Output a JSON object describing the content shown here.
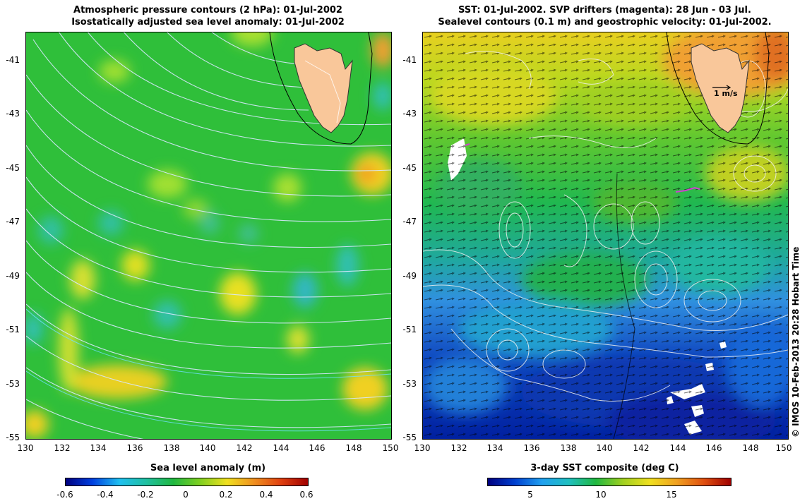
{
  "left_panel": {
    "title_line1": "Atmospheric pressure contours (2 hPa): 01-Jul-2002",
    "title_line2": "Isostatically adjusted sea level anomaly: 01-Jul-2002",
    "colorbar_label": "Sea level anomaly (m)",
    "colorbar_ticks": [
      "-0.6",
      "-0.4",
      "-0.2",
      "0",
      "0.2",
      "0.4",
      "0.6"
    ],
    "colors": {
      "land": "#f9c79a",
      "base": "#2fbf3a",
      "contour": "#e8f0ff"
    }
  },
  "right_panel": {
    "title_line1": "SST: 01-Jul-2002. SVP drifters (magenta): 28 Jun - 03 Jul.",
    "title_line2": "Sealevel contours (0.1 m) and geostrophic velocity: 01-Jul-2002.",
    "colorbar_label": "3-day SST composite (deg C)",
    "colorbar_ticks": [
      "5",
      "10",
      "15"
    ],
    "scale_label": "1 m/s",
    "colors": {
      "land": "#f9c79a",
      "drifter": "#d040d0"
    }
  },
  "axes": {
    "y_ticks": [
      "-41",
      "-43",
      "-45",
      "-47",
      "-49",
      "-51",
      "-53",
      "-55"
    ],
    "x_ticks": [
      "130",
      "132",
      "134",
      "136",
      "138",
      "140",
      "142",
      "144",
      "146",
      "148",
      "150"
    ]
  },
  "credit": "© IMOS 10-Feb-2013 20:28 Hobart Time"
}
